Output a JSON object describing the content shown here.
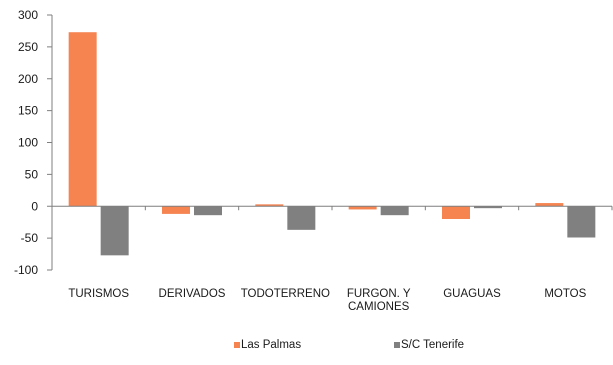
{
  "chart_data": {
    "type": "bar",
    "categories": [
      "TURISMOS",
      "DERIVADOS",
      "TODOTERRENO",
      "FURGON. Y CAMIONES",
      "GUAGUAS",
      "MOTOS"
    ],
    "category_lines": [
      [
        "TURISMOS"
      ],
      [
        "DERIVADOS"
      ],
      [
        "TODOTERRENO"
      ],
      [
        "FURGON. Y",
        "CAMIONES"
      ],
      [
        "GUAGUAS"
      ],
      [
        "MOTOS"
      ]
    ],
    "series": [
      {
        "name": "Las Palmas",
        "color": "#f58451",
        "values": [
          273,
          -12,
          3,
          -5,
          -20,
          5
        ]
      },
      {
        "name": "S/C Tenerife",
        "color": "#808080",
        "values": [
          -77,
          -14,
          -37,
          -14,
          -3,
          -49
        ]
      }
    ],
    "ylim": [
      -100,
      300
    ],
    "yticks": [
      300,
      250,
      200,
      150,
      100,
      50,
      0,
      -50,
      -100
    ],
    "grid": false,
    "legend_position": "bottom",
    "title": "",
    "xlabel": "",
    "ylabel": ""
  }
}
